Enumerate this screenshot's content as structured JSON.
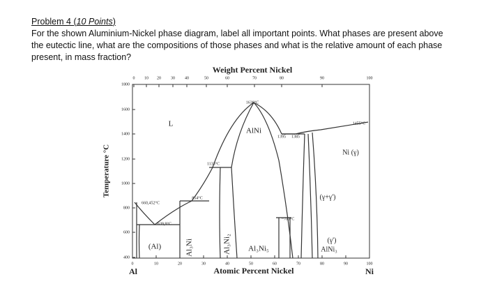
{
  "problem": {
    "heading": [
      "Problem 4 (",
      "10 Points",
      ")"
    ],
    "text": [
      "For the shown Aluminium-Nickel phase diagram, label all important points. What phases are present above",
      "the eutectic line, what are the compositions of those phases and what is the relative amount of each phase",
      "present, in mass fraction?"
    ]
  },
  "diagram": {
    "weight_axis_title": "Weight Percent Nickel",
    "weight_ticks": [
      0,
      10,
      20,
      30,
      40,
      50,
      60,
      70,
      80,
      90,
      100
    ],
    "temperature_axis_title": "Temperature °C",
    "temperature_ticks": [
      1800,
      1600,
      1400,
      1200,
      1000,
      800,
      600,
      400
    ],
    "atomic_axis_title": "Atomic Percent Nickel",
    "atomic_ticks": [
      0,
      10,
      20,
      30,
      40,
      50,
      60,
      70,
      80,
      90,
      100
    ],
    "left_element": "Al",
    "right_element": "Ni",
    "labels": [
      "L",
      "1638°C",
      "AlNi",
      "1133°C",
      "854°C",
      "660,452°C",
      "639,9°C",
      "(Al)",
      "Al₃Ni",
      "Al₃Ni₂",
      "Al₃Ni₅",
      "~700°C",
      "1395",
      "1385",
      "1455°C",
      "Ni (γ)",
      "(γ+γ')",
      "(γ')",
      "AlNi₃"
    ]
  }
}
